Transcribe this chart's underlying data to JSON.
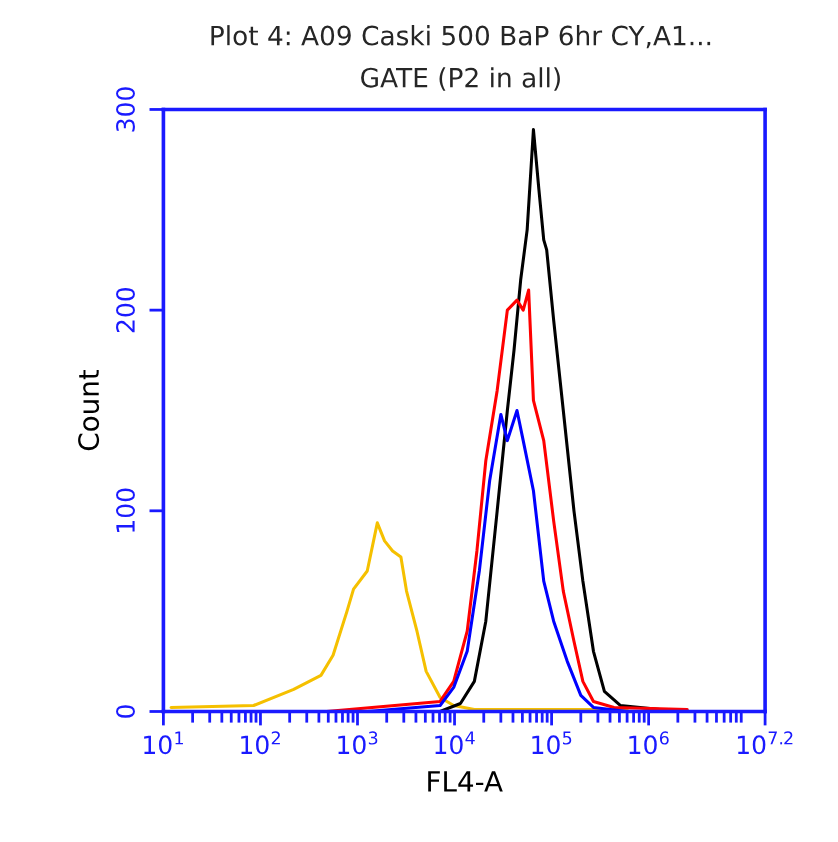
{
  "chart_data": {
    "type": "line",
    "title": "Plot 4: A09 Caski 500 BaP 6hr CY,A1...",
    "subtitle": "GATE (P2 in all)",
    "xlabel": "FL4-A",
    "ylabel": "Count",
    "log": "x",
    "grid": false,
    "legend": false,
    "marker": "none",
    "line_style": "solid",
    "xlim": [
      10,
      15848932
    ],
    "ylim": [
      0,
      300
    ],
    "xticks": [
      {
        "value": 10,
        "label": "10$^{1}$"
      },
      {
        "value": 100,
        "label": "10$^{2}$"
      },
      {
        "value": 1000,
        "label": "10$^{3}$"
      },
      {
        "value": 10000,
        "label": "10$^{4}$"
      },
      {
        "value": 100000,
        "label": "10$^{5}$"
      },
      {
        "value": 1000000,
        "label": "10$^{6}$"
      },
      {
        "value": 15848932,
        "label": "10$^{7.2}$"
      }
    ],
    "yticks": [
      0,
      100,
      200,
      300
    ],
    "series": [
      {
        "color": "#f5c000",
        "x": [
          12,
          85,
          220,
          420,
          560,
          780,
          910,
          1260,
          1600,
          1900,
          2300,
          2800,
          3200,
          4100,
          5100,
          7100,
          9800,
          16000,
          35000,
          600000
        ],
        "values": [
          2,
          3,
          11,
          18,
          28,
          50,
          61,
          70,
          94,
          85,
          80,
          77,
          60,
          40,
          20,
          7,
          3,
          1,
          1,
          1
        ]
      },
      {
        "color": "#000000",
        "x": [
          7100,
          11500,
          16000,
          21000,
          27500,
          35000,
          41000,
          48000,
          56000,
          65000,
          74000,
          83000,
          89000,
          105000,
          132000,
          170000,
          210000,
          270000,
          350000,
          510000,
          950000,
          2100000
        ],
        "values": [
          0,
          4,
          15,
          45,
          100,
          150,
          180,
          215,
          240,
          290,
          260,
          235,
          230,
          195,
          150,
          100,
          65,
          30,
          10,
          3,
          null,
          0
        ]
      },
      {
        "color": "#ff0000",
        "x": [
          480,
          7100,
          9800,
          13500,
          17000,
          21000,
          27500,
          35000,
          44000,
          51000,
          58000,
          65000,
          83000,
          105000,
          132000,
          170000,
          210000,
          270000,
          440000,
          2500000
        ],
        "values": [
          0,
          5,
          15,
          40,
          80,
          125,
          160,
          200,
          205,
          200,
          210,
          155,
          135,
          95,
          60,
          35,
          15,
          5,
          2,
          1
        ]
      },
      {
        "color": "#0000ff",
        "x": [
          1260,
          7100,
          9800,
          13500,
          18000,
          23000,
          30000,
          35000,
          44000,
          51000,
          65000,
          83000,
          105000,
          145000,
          200000,
          270000,
          600000
        ],
        "values": [
          0,
          3,
          12,
          30,
          70,
          115,
          148,
          135,
          150,
          135,
          110,
          65,
          45,
          25,
          8,
          2,
          0
        ]
      }
    ]
  }
}
